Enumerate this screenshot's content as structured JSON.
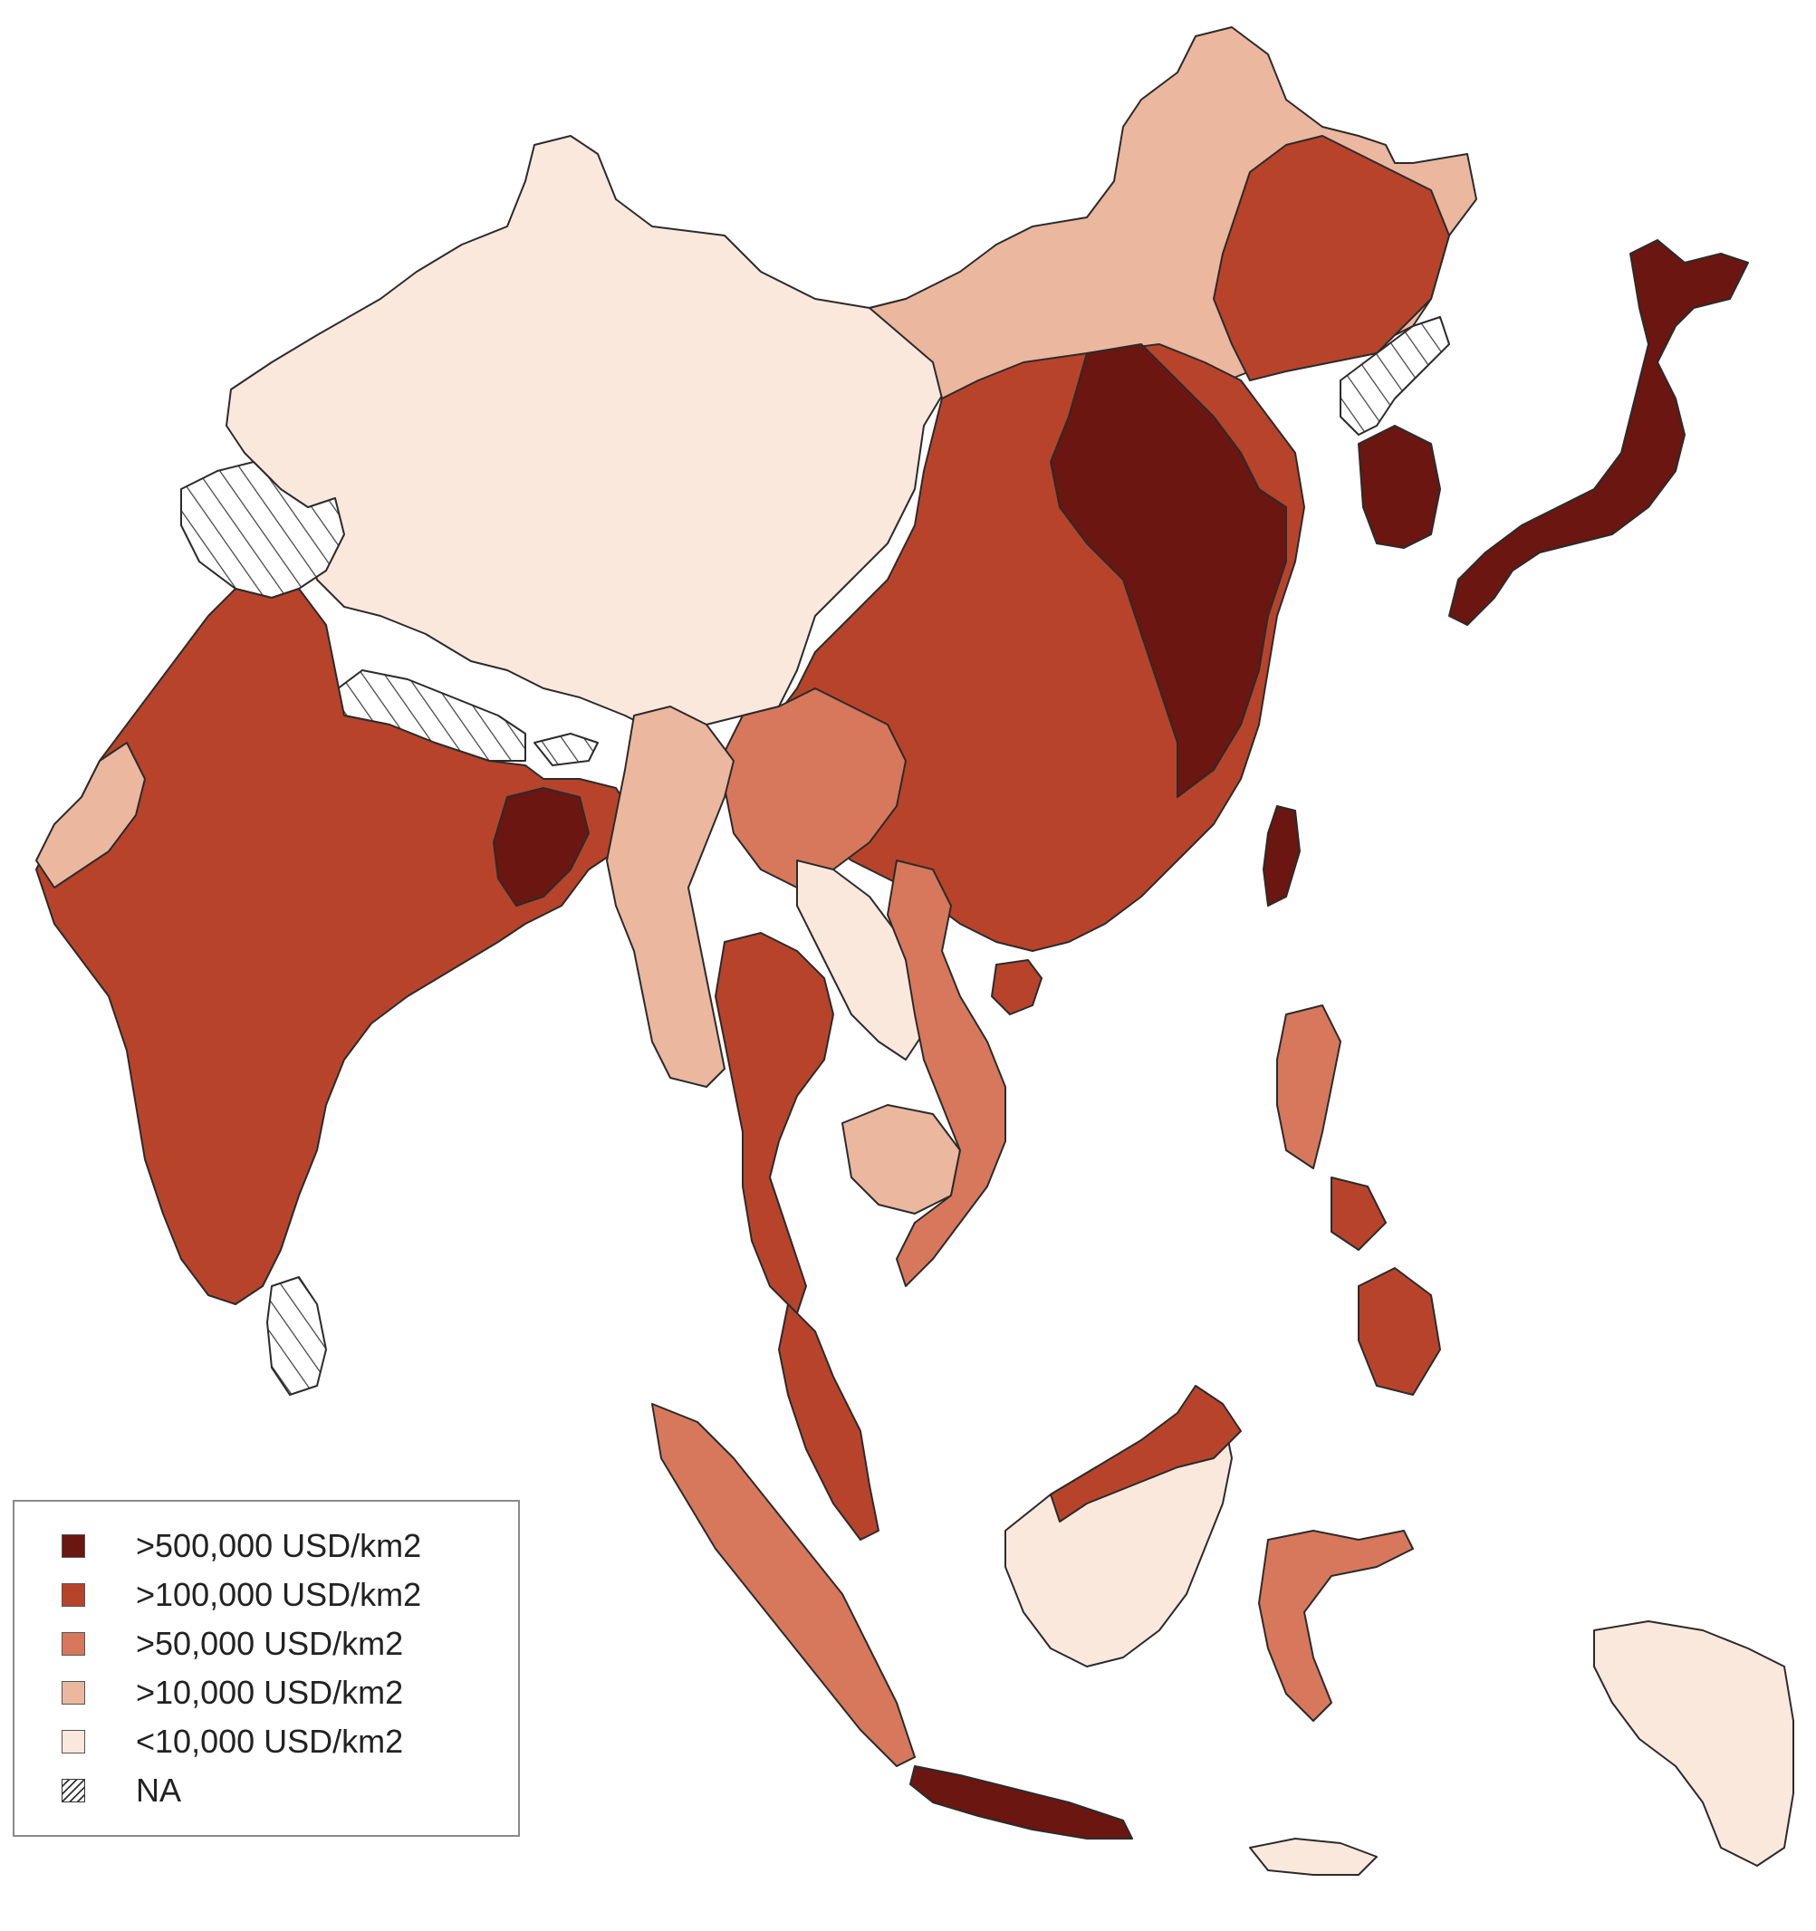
{
  "legend": {
    "items": [
      {
        "label": ">500,000 USD/km2",
        "color": "#6b1610"
      },
      {
        "label": ">100,000 USD/km2",
        "color": "#b8432b"
      },
      {
        "label": ">50,000 USD/km2",
        "color": "#d7785c"
      },
      {
        "label": ">10,000 USD/km2",
        "color": "#ebb79f"
      },
      {
        "label": "<10,000 USD/km2",
        "color": "#fbe8dd"
      },
      {
        "label": "NA",
        "color": "hatched",
        "icon": "hatch-pattern-icon"
      }
    ]
  },
  "colors": {
    "outline": "#2b2b2b",
    "hatch_line": "#444444",
    "background": "#ffffff"
  }
}
